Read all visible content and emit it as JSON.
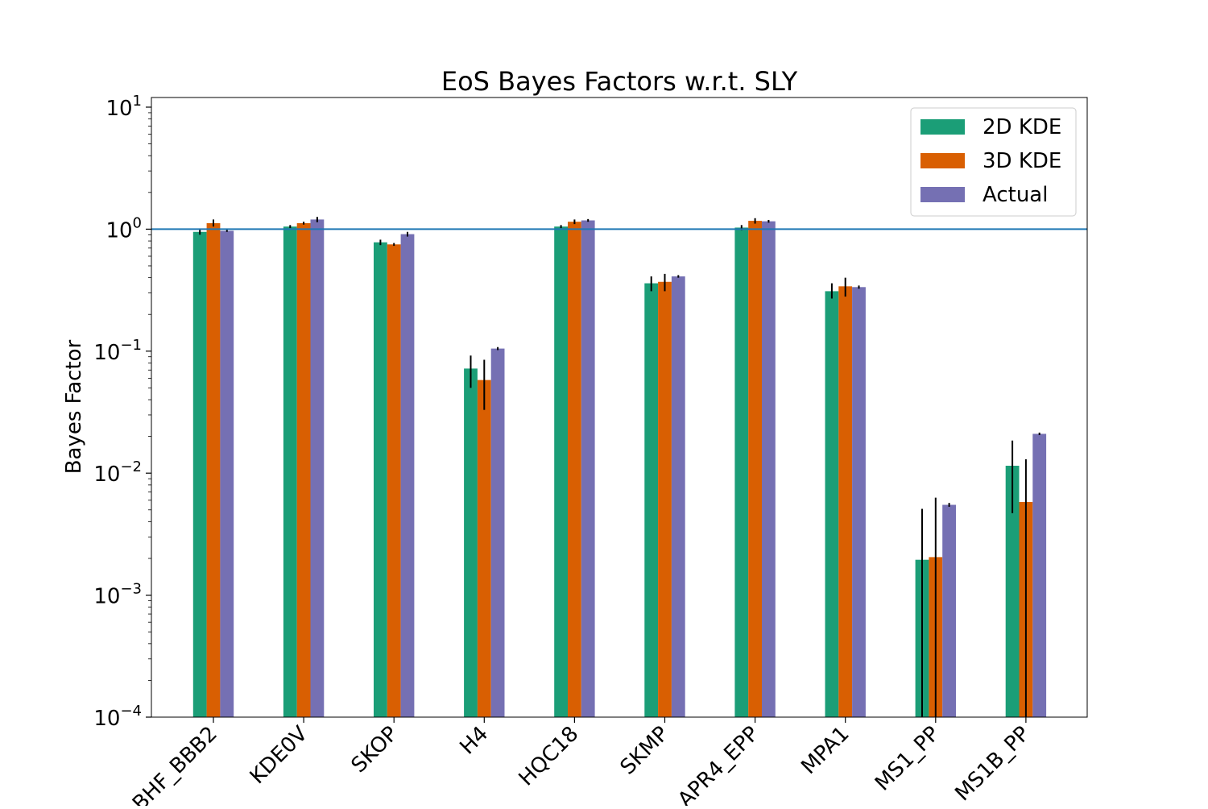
{
  "chart_data": {
    "type": "bar",
    "title": "EoS Bayes Factors w.r.t. SLY",
    "xlabel": "",
    "ylabel": "Bayes Factor",
    "yscale": "log",
    "ylim": [
      0.0001,
      12
    ],
    "yticks": [
      {
        "value": 0.0001,
        "base": "10",
        "exp": "−4"
      },
      {
        "value": 0.001,
        "base": "10",
        "exp": "−3"
      },
      {
        "value": 0.01,
        "base": "10",
        "exp": "−2"
      },
      {
        "value": 0.1,
        "base": "10",
        "exp": "−1"
      },
      {
        "value": 1,
        "base": "10",
        "exp": "0"
      },
      {
        "value": 10,
        "base": "10",
        "exp": "1"
      }
    ],
    "reference_line": 1.0,
    "legend_position": "top-right",
    "categories": [
      "BHF_BBB2",
      "KDE0V",
      "SKOP",
      "H4",
      "HQC18",
      "SKMP",
      "APR4_EPP",
      "MPA1",
      "MS1_PP",
      "MS1B_PP"
    ],
    "series": [
      {
        "name": "2D KDE",
        "color": "#1b9e77",
        "values": [
          0.95,
          1.05,
          0.78,
          0.072,
          1.05,
          0.36,
          1.03,
          0.31,
          0.00195,
          0.0115
        ],
        "err_low": [
          0.9,
          1.02,
          0.74,
          0.05,
          1.02,
          0.31,
          0.98,
          0.27,
          5e-05,
          0.0047
        ],
        "err_high": [
          1.0,
          1.08,
          0.82,
          0.092,
          1.08,
          0.41,
          1.08,
          0.36,
          0.0051,
          0.0185
        ]
      },
      {
        "name": "3D KDE",
        "color": "#d95f02",
        "values": [
          1.12,
          1.12,
          0.75,
          0.058,
          1.15,
          0.37,
          1.17,
          0.34,
          0.00205,
          0.0058
        ],
        "err_low": [
          1.05,
          1.09,
          0.73,
          0.033,
          1.1,
          0.31,
          1.11,
          0.28,
          5e-05,
          5e-05
        ],
        "err_high": [
          1.2,
          1.15,
          0.77,
          0.085,
          1.2,
          0.43,
          1.23,
          0.4,
          0.0063,
          0.013
        ]
      },
      {
        "name": "Actual",
        "color": "#7570b3",
        "values": [
          0.97,
          1.2,
          0.91,
          0.105,
          1.18,
          0.41,
          1.16,
          0.335,
          0.0055,
          0.021
        ],
        "err_low": [
          0.95,
          1.14,
          0.87,
          0.102,
          1.15,
          0.4,
          1.13,
          0.325,
          0.0053,
          0.0205
        ],
        "err_high": [
          0.99,
          1.26,
          0.95,
          0.108,
          1.21,
          0.42,
          1.19,
          0.345,
          0.0057,
          0.0215
        ]
      }
    ]
  }
}
